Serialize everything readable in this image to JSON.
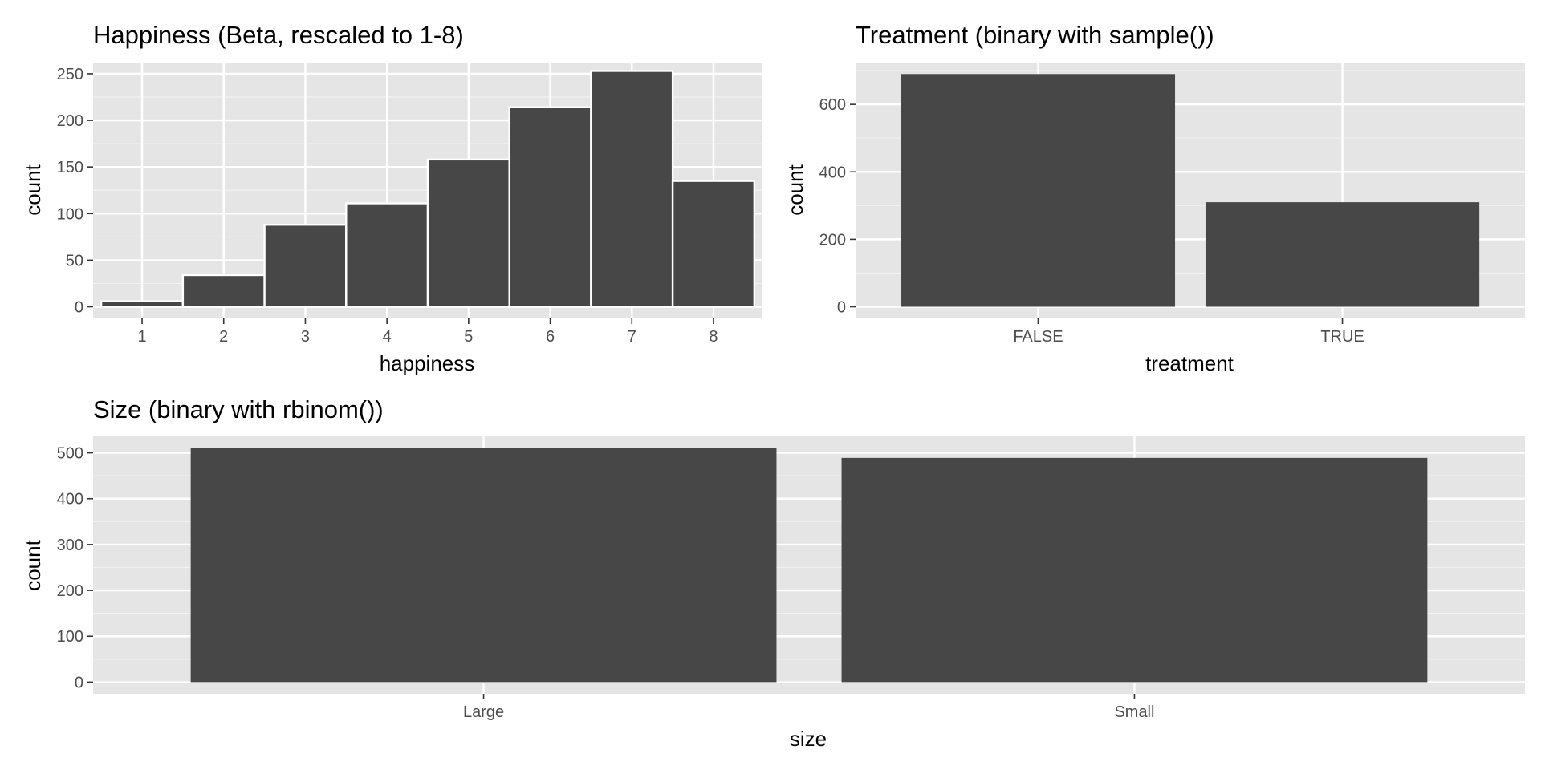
{
  "colors": {
    "panel_background": "#e5e5e5",
    "grid_major": "#ffffff",
    "grid_minor": "#f2f2f2",
    "bar_fill": "#474747",
    "bar_outline": "#ffffff",
    "tick_text": "#4d4d4d",
    "text": "#000000"
  },
  "chart_data": [
    {
      "type": "bar",
      "title": "Happiness (Beta, rescaled to 1-8)",
      "xlabel": "happiness",
      "ylabel": "count",
      "categories": [
        "1",
        "2",
        "3",
        "4",
        "5",
        "6",
        "7",
        "8"
      ],
      "values": [
        6,
        34,
        88,
        111,
        158,
        214,
        253,
        135
      ],
      "ylim": [
        0,
        262
      ],
      "yticks": [
        0,
        50,
        100,
        150,
        200,
        250
      ],
      "ytick_labels": [
        "0",
        "50",
        "100",
        "150",
        "200",
        "250"
      ],
      "grid": true
    },
    {
      "type": "bar",
      "title": "Treatment (binary with sample())",
      "xlabel": "treatment",
      "ylabel": "count",
      "categories": [
        "FALSE",
        "TRUE"
      ],
      "values": [
        690,
        310
      ],
      "ylim": [
        0,
        724
      ],
      "yticks": [
        0,
        200,
        400,
        600
      ],
      "ytick_labels": [
        "0",
        "200",
        "400",
        "600"
      ],
      "grid": true
    },
    {
      "type": "bar",
      "title": "Size (binary with rbinom())",
      "xlabel": "size",
      "ylabel": "count",
      "categories": [
        "Large",
        "Small"
      ],
      "values": [
        511,
        489
      ],
      "ylim": [
        0,
        536
      ],
      "yticks": [
        0,
        100,
        200,
        300,
        400,
        500
      ],
      "ytick_labels": [
        "0",
        "100",
        "200",
        "300",
        "400",
        "500"
      ],
      "grid": true
    }
  ]
}
